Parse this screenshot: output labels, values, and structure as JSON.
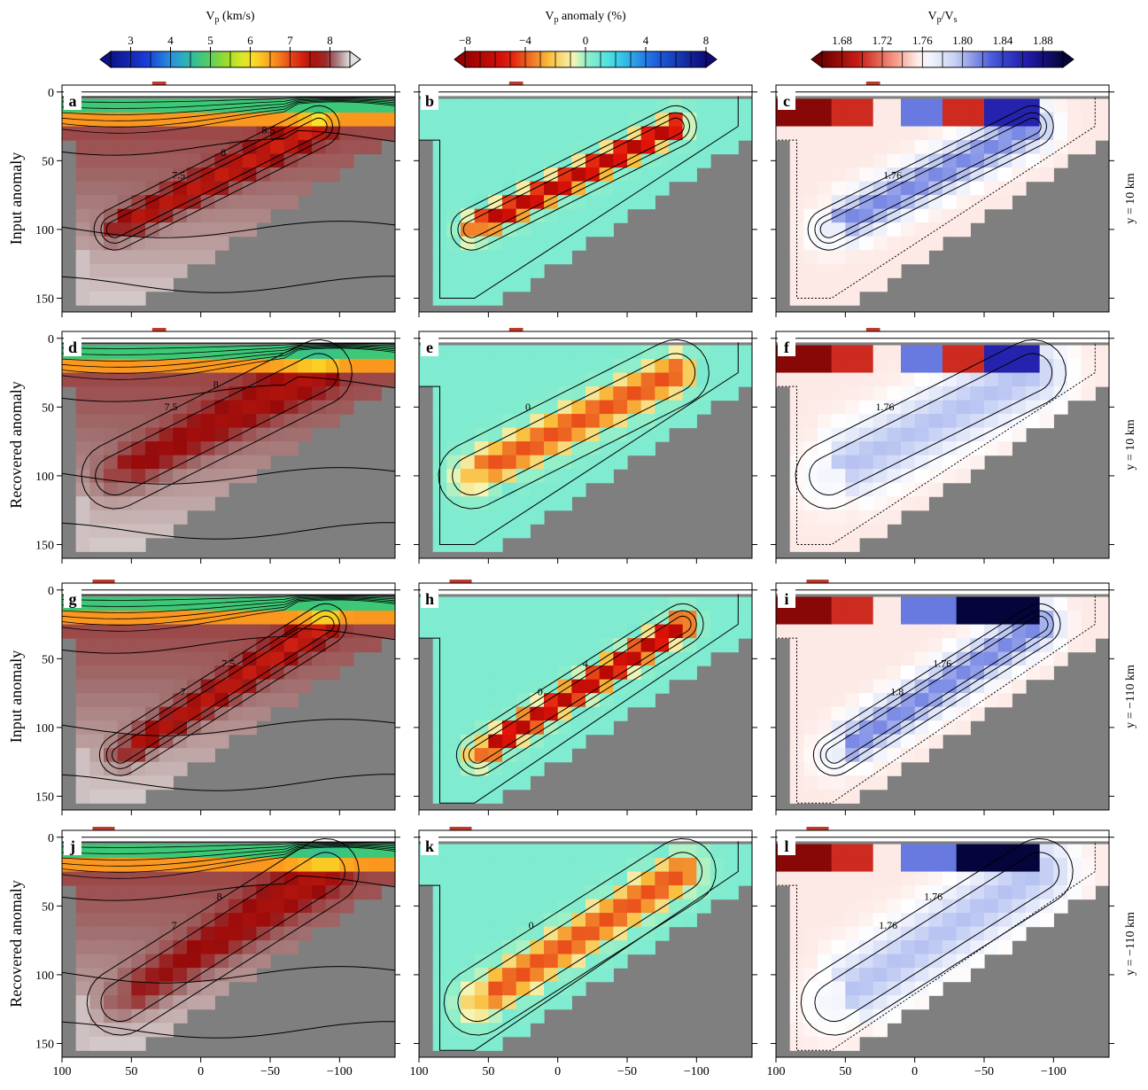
{
  "figure": {
    "row_labels": [
      "Input anomaly",
      "Recovered anomaly",
      "Input anomaly",
      "Recovered anomaly"
    ],
    "side_labels": [
      "y =  10 km",
      "y =  10 km",
      "y = −110 km",
      "y = −110 km"
    ],
    "panel_letters": [
      "a",
      "b",
      "c",
      "d",
      "e",
      "f",
      "g",
      "h",
      "i",
      "j",
      "k",
      "l"
    ],
    "x_ticks": [
      "100",
      "50",
      "0",
      "−50",
      "−100"
    ],
    "y_ticks": [
      "0",
      "50",
      "100",
      "150"
    ],
    "colorbars": [
      {
        "title": "V",
        "sub": "p",
        "suffix": " (km/s)",
        "ticks": [
          "3",
          "4",
          "5",
          "6",
          "7",
          "8"
        ]
      },
      {
        "title": "V",
        "sub": "p",
        "suffix": " anomaly (%)",
        "ticks": [
          "−8",
          "−4",
          "0",
          "4",
          "8"
        ]
      },
      {
        "title": "V",
        "sub": "p",
        "mid": "/V",
        "sub2": "s",
        "suffix": "",
        "ticks": [
          "1.68",
          "1.72",
          "1.76",
          "1.80",
          "1.84",
          "1.88"
        ]
      }
    ],
    "contour_labels": {
      "a": [
        "7.5",
        "8",
        "8.5"
      ],
      "d": [
        "7.5",
        "8"
      ],
      "e": [
        "0"
      ],
      "c": [
        "1.76"
      ],
      "f": [
        "1.76"
      ],
      "g": [
        "7",
        "7.5"
      ],
      "h": [
        "0",
        "4"
      ],
      "i": [
        "1.8",
        "1.76"
      ],
      "j": [
        "7",
        "8"
      ],
      "k": [
        "0"
      ],
      "l": [
        "1.76",
        "1.76"
      ]
    }
  },
  "chart_data": {
    "type": "heatmap",
    "layout": "4 rows x 3 columns of cross-section panels",
    "x_axis": {
      "xlim": [
        100,
        -140
      ],
      "ticks": [
        100,
        50,
        0,
        -50,
        -100
      ]
    },
    "y_axis": {
      "ylim": [
        160,
        -5
      ],
      "ticks": [
        0,
        50,
        100,
        150
      ],
      "inverted": true
    },
    "colorscales": [
      {
        "quantity": "Vp",
        "unit": "km/s",
        "range": [
          2.5,
          8.5
        ],
        "ticks": [
          3,
          4,
          5,
          6,
          7,
          8
        ]
      },
      {
        "quantity": "Vp anomaly",
        "unit": "%",
        "range": [
          -8,
          8
        ],
        "ticks": [
          -8,
          -4,
          0,
          4,
          8
        ]
      },
      {
        "quantity": "Vp/Vs",
        "range": [
          1.66,
          1.9
        ],
        "ticks": [
          1.68,
          1.72,
          1.76,
          1.8,
          1.84,
          1.88
        ]
      }
    ],
    "slab": {
      "y10": [
        [
          62,
          100
        ],
        [
          -85,
          25
        ]
      ],
      "y_neg110": [
        [
          58,
          120
        ],
        [
          -90,
          25
        ]
      ]
    },
    "station_markers": {
      "y10": [
        35,
        25
      ],
      "y_neg110": [
        78,
        62
      ]
    }
  }
}
